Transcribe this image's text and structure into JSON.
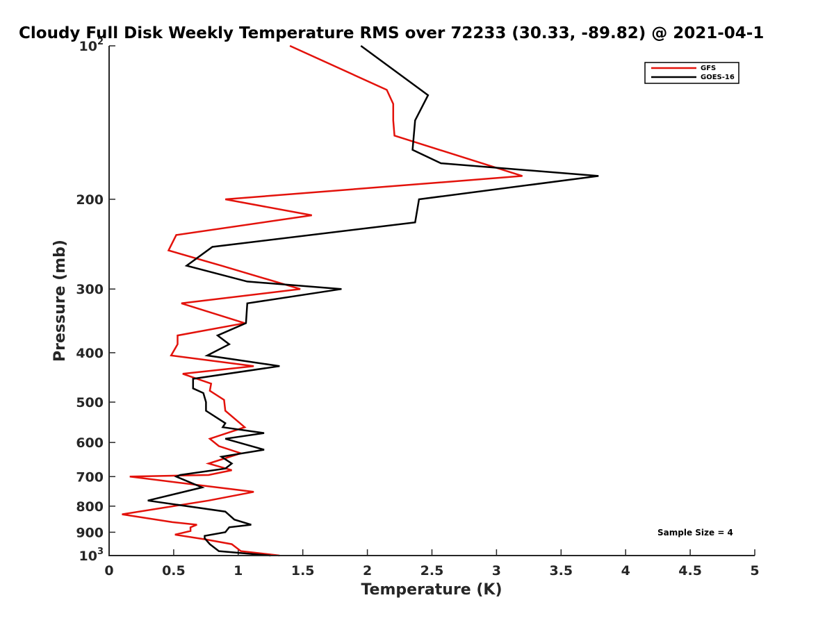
{
  "chart_data": {
    "type": "line",
    "title": "Cloudy Full Disk Weekly Temperature RMS over 72233 (30.33, -89.82) @ 2021-04-1",
    "xlabel": "Temperature (K)",
    "ylabel": "Pressure (mb)",
    "xlim": [
      0,
      5
    ],
    "ylim": [
      100,
      1000
    ],
    "yscale": "log",
    "y_reversed": true,
    "grid": false,
    "legend_position": "top-right",
    "x_ticks": [
      0,
      0.5,
      1,
      1.5,
      2,
      2.5,
      3,
      3.5,
      4,
      4.5,
      5
    ],
    "x_tick_labels": [
      "0",
      "0.5",
      "1",
      "1.5",
      "2",
      "2.5",
      "3",
      "3.5",
      "4",
      "4.5",
      "5"
    ],
    "y_ticks": [
      100,
      200,
      300,
      400,
      500,
      600,
      700,
      800,
      900,
      1000
    ],
    "y_tick_labels": [
      {
        "base": "10",
        "exp": "2"
      },
      {
        "base": "200",
        "exp": ""
      },
      {
        "base": "300",
        "exp": ""
      },
      {
        "base": "400",
        "exp": ""
      },
      {
        "base": "500",
        "exp": ""
      },
      {
        "base": "600",
        "exp": ""
      },
      {
        "base": "700",
        "exp": ""
      },
      {
        "base": "800",
        "exp": ""
      },
      {
        "base": "900",
        "exp": ""
      },
      {
        "base": "10",
        "exp": "3"
      }
    ],
    "series": [
      {
        "name": "GFS",
        "color": "#e3120b",
        "temperature": [
          1.4,
          2.15,
          2.2,
          2.2,
          2.21,
          3.2,
          0.9,
          1.57,
          0.52,
          0.46,
          0.87,
          1.48,
          0.56,
          1.05,
          0.53,
          0.53,
          0.48,
          1.12,
          0.57,
          0.79,
          0.78,
          0.89,
          0.9,
          1.05,
          0.78,
          0.85,
          1.02,
          0.77,
          0.95,
          0.77,
          0.16,
          1.12,
          0.77,
          0.1,
          0.49,
          0.68,
          0.63,
          0.63,
          0.51,
          0.75,
          0.95,
          1.02,
          1.32
        ],
        "pressure": [
          100,
          122,
          130,
          140,
          150,
          180,
          200,
          215,
          235,
          252,
          270,
          300,
          320,
          350,
          370,
          385,
          405,
          425,
          440,
          460,
          475,
          495,
          520,
          560,
          590,
          610,
          630,
          660,
          680,
          695,
          700,
          750,
          780,
          830,
          860,
          870,
          880,
          895,
          910,
          930,
          950,
          980,
          1000
        ]
      },
      {
        "name": "GOES-16",
        "color": "#000000",
        "temperature": [
          1.95,
          2.47,
          2.37,
          2.35,
          2.57,
          3.79,
          2.4,
          2.37,
          0.8,
          0.6,
          1.07,
          1.8,
          1.07,
          1.06,
          0.84,
          0.93,
          0.76,
          1.32,
          0.65,
          0.65,
          0.73,
          0.75,
          0.75,
          0.9,
          0.88,
          1.2,
          0.9,
          1.2,
          0.87,
          0.95,
          0.9,
          0.55,
          0.52,
          0.72,
          0.3,
          0.9,
          0.97,
          1.1,
          0.93,
          0.9,
          0.74,
          0.74,
          0.78,
          0.85,
          1.25
        ],
        "pressure": [
          100,
          125,
          140,
          160,
          170,
          180,
          200,
          222,
          248,
          270,
          290,
          300,
          320,
          350,
          370,
          385,
          405,
          425,
          450,
          470,
          480,
          500,
          520,
          550,
          560,
          575,
          590,
          620,
          640,
          660,
          675,
          695,
          700,
          735,
          780,
          820,
          850,
          870,
          880,
          900,
          915,
          925,
          950,
          980,
          1000
        ]
      }
    ],
    "annotation": "Sample Size = 4"
  }
}
